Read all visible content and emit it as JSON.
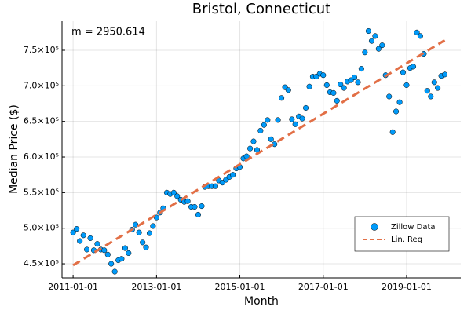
{
  "chart_data": {
    "type": "scatter",
    "title": "Bristol, Connecticut",
    "x_label": "Month",
    "y_label": "Median Price ($)",
    "annotation": "m = 2950.614",
    "xlim": [
      "2010-09-26",
      "2020-04-20"
    ],
    "xticks": [
      "2011-01-01",
      "2013-01-01",
      "2015-01-01",
      "2017-01-01",
      "2019-01-01"
    ],
    "ylim": [
      430200,
      790800
    ],
    "yticks": [
      {
        "value": 450000,
        "label": "4.5×10⁵"
      },
      {
        "value": 500000,
        "label": "5.0×10⁵"
      },
      {
        "value": 550000,
        "label": "5.5×10⁵"
      },
      {
        "value": 600000,
        "label": "6.0×10⁵"
      },
      {
        "value": 650000,
        "label": "6.5×10⁵"
      },
      {
        "value": 700000,
        "label": "7.0×10⁵"
      },
      {
        "value": 750000,
        "label": "7.5×10⁵"
      }
    ],
    "grid": true,
    "legend": "bottom-right",
    "series": [
      {
        "name": "Zillow Data",
        "type": "scatter",
        "color": "#009af9",
        "x": [
          "2011-01-01",
          "2011-02-01",
          "2011-03-01",
          "2011-04-01",
          "2011-05-01",
          "2011-06-01",
          "2011-07-01",
          "2011-08-01",
          "2011-09-01",
          "2011-10-01",
          "2011-11-01",
          "2011-12-01",
          "2012-01-01",
          "2012-02-01",
          "2012-03-01",
          "2012-04-01",
          "2012-05-01",
          "2012-06-01",
          "2012-07-01",
          "2012-08-01",
          "2012-09-01",
          "2012-10-01",
          "2012-11-01",
          "2012-12-01",
          "2013-01-01",
          "2013-02-01",
          "2013-03-01",
          "2013-04-01",
          "2013-05-01",
          "2013-06-01",
          "2013-07-01",
          "2013-08-01",
          "2013-09-01",
          "2013-10-01",
          "2013-11-01",
          "2013-12-01",
          "2014-01-01",
          "2014-02-01",
          "2014-03-01",
          "2014-04-01",
          "2014-05-01",
          "2014-06-01",
          "2014-07-01",
          "2014-08-01",
          "2014-09-01",
          "2014-10-01",
          "2014-11-01",
          "2014-12-01",
          "2015-01-01",
          "2015-02-01",
          "2015-03-01",
          "2015-04-01",
          "2015-05-01",
          "2015-06-01",
          "2015-07-01",
          "2015-08-01",
          "2015-09-01",
          "2015-10-01",
          "2015-11-01",
          "2015-12-01",
          "2016-01-01",
          "2016-02-01",
          "2016-03-01",
          "2016-04-01",
          "2016-05-01",
          "2016-06-01",
          "2016-07-01",
          "2016-08-01",
          "2016-09-01",
          "2016-10-01",
          "2016-11-01",
          "2016-12-01",
          "2017-01-01",
          "2017-02-01",
          "2017-03-01",
          "2017-04-01",
          "2017-05-01",
          "2017-06-01",
          "2017-07-01",
          "2017-08-01",
          "2017-09-01",
          "2017-10-01",
          "2017-11-01",
          "2017-12-01",
          "2018-01-01",
          "2018-02-01",
          "2018-03-01",
          "2018-04-01",
          "2018-05-01",
          "2018-06-01",
          "2018-07-01",
          "2018-08-01",
          "2018-09-01",
          "2018-10-01",
          "2018-11-01",
          "2018-12-01",
          "2019-01-01",
          "2019-02-01",
          "2019-03-01",
          "2019-04-01",
          "2019-05-01",
          "2019-06-01",
          "2019-07-01",
          "2019-08-01",
          "2019-09-01",
          "2019-10-01",
          "2019-11-01",
          "2019-12-01"
        ],
        "values": [
          494000,
          499000,
          482000,
          490000,
          470000,
          486000,
          469000,
          478000,
          470000,
          469000,
          463000,
          450000,
          439000,
          455000,
          457000,
          472000,
          465000,
          498000,
          505000,
          494000,
          480000,
          473000,
          493000,
          503000,
          515000,
          522000,
          528000,
          550000,
          548000,
          550000,
          545000,
          540000,
          537000,
          538000,
          530000,
          530000,
          519000,
          531000,
          558000,
          559000,
          559000,
          559000,
          567000,
          564000,
          568000,
          572000,
          575000,
          584000,
          586000,
          598000,
          601000,
          612000,
          622000,
          610000,
          637000,
          645000,
          652000,
          625000,
          618000,
          652000,
          683000,
          698000,
          694000,
          653000,
          646000,
          657000,
          654000,
          669000,
          699000,
          713000,
          713000,
          717000,
          715000,
          701000,
          691000,
          690000,
          679000,
          702000,
          697000,
          706000,
          708000,
          712000,
          705000,
          724000,
          747000,
          777000,
          763000,
          770000,
          752000,
          757000,
          715000,
          685000,
          635000,
          664000,
          677000,
          719000,
          701000,
          725000,
          727000,
          775000,
          770000,
          745000,
          693000,
          685000,
          705000,
          697000,
          714000,
          716000
        ]
      },
      {
        "name": "Lin. Reg",
        "type": "line",
        "color": "#e26f46",
        "x": [
          "2011-01-01",
          "2019-12-01"
        ],
        "values": [
          448000,
          764000
        ]
      }
    ]
  }
}
